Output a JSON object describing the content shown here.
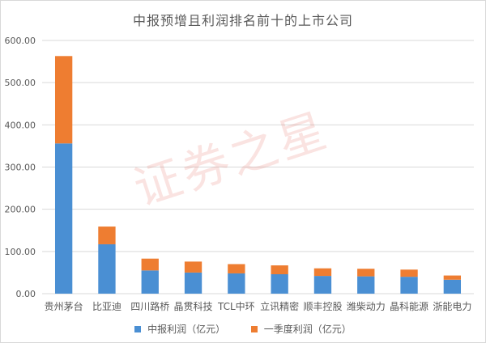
{
  "chart_data": {
    "type": "bar",
    "stacked": true,
    "title": "中报预增且利润排名前十的上市公司",
    "categories": [
      "贵州茅台",
      "比亚迪",
      "四川路桥",
      "晶贯科技",
      "TCL中环",
      "立讯精密",
      "顺丰控股",
      "潍柴动力",
      "晶科能源",
      "浙能电力"
    ],
    "series": [
      {
        "name": "中报利润（亿元）",
        "color": "#4a8fd3",
        "values": [
          356,
          117,
          55,
          50,
          48,
          46,
          42,
          41,
          40,
          33
        ]
      },
      {
        "name": "一季度利润（亿元）",
        "color": "#ee7d31",
        "values": [
          207,
          42,
          28,
          26,
          22,
          21,
          18,
          18,
          17,
          10
        ]
      }
    ],
    "yticks": [
      "0.00",
      "100.00",
      "200.00",
      "300.00",
      "400.00",
      "500.00",
      "600.00"
    ],
    "ylim": [
      0,
      600
    ],
    "grid": true,
    "legend": "bottom"
  },
  "watermark": "证券之星"
}
